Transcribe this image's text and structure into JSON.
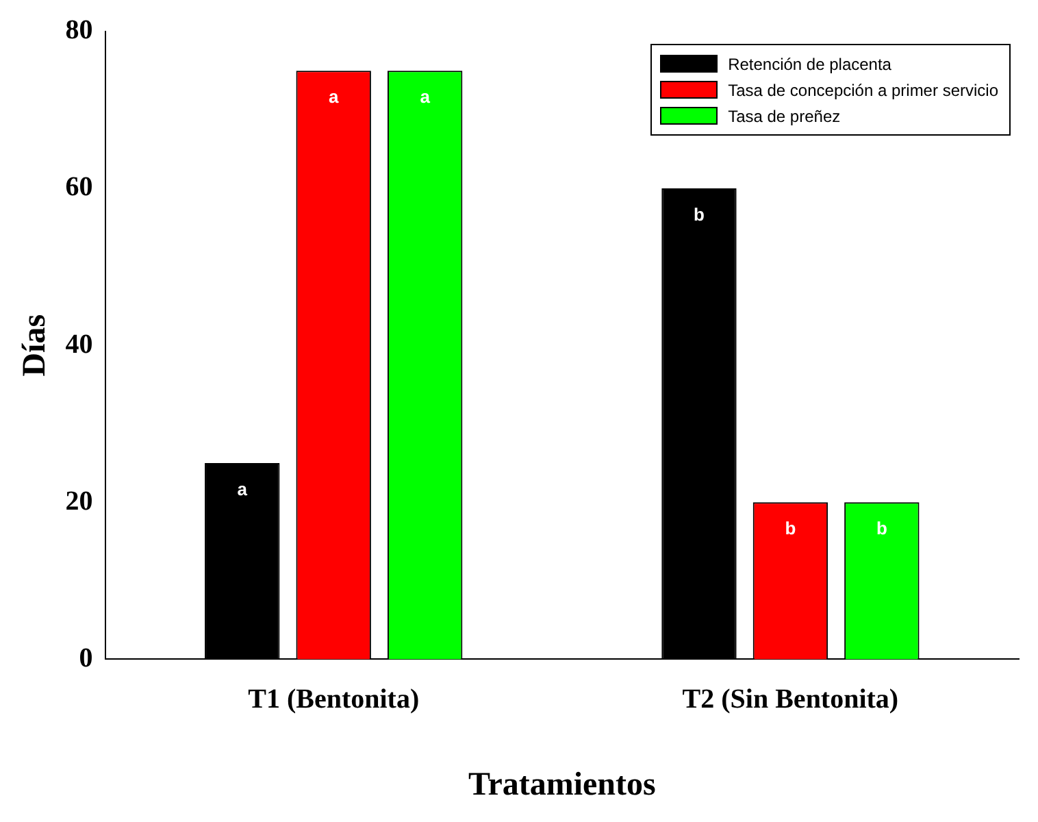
{
  "chart_data": {
    "type": "bar",
    "xlabel": "Tratamientos",
    "ylabel": "Días",
    "categories": [
      "T1 (Bentonita)",
      "T2 (Sin Bentonita)"
    ],
    "series": [
      {
        "name": "Retención de placenta",
        "color": "#000000",
        "values": [
          25,
          60
        ],
        "value_labels": [
          "a",
          "b"
        ]
      },
      {
        "name": "Tasa de concepción a primer servicio",
        "color": "#ff0000",
        "values": [
          75,
          20
        ],
        "value_labels": [
          "a",
          "b"
        ]
      },
      {
        "name": "Tasa de preñez",
        "color": "#00ff00",
        "values": [
          75,
          20
        ],
        "value_labels": [
          "a",
          "b"
        ]
      }
    ],
    "ylim": [
      0,
      80
    ],
    "yticks": [
      0,
      20,
      40,
      60,
      80
    ],
    "grid": false,
    "legend": "top right"
  }
}
